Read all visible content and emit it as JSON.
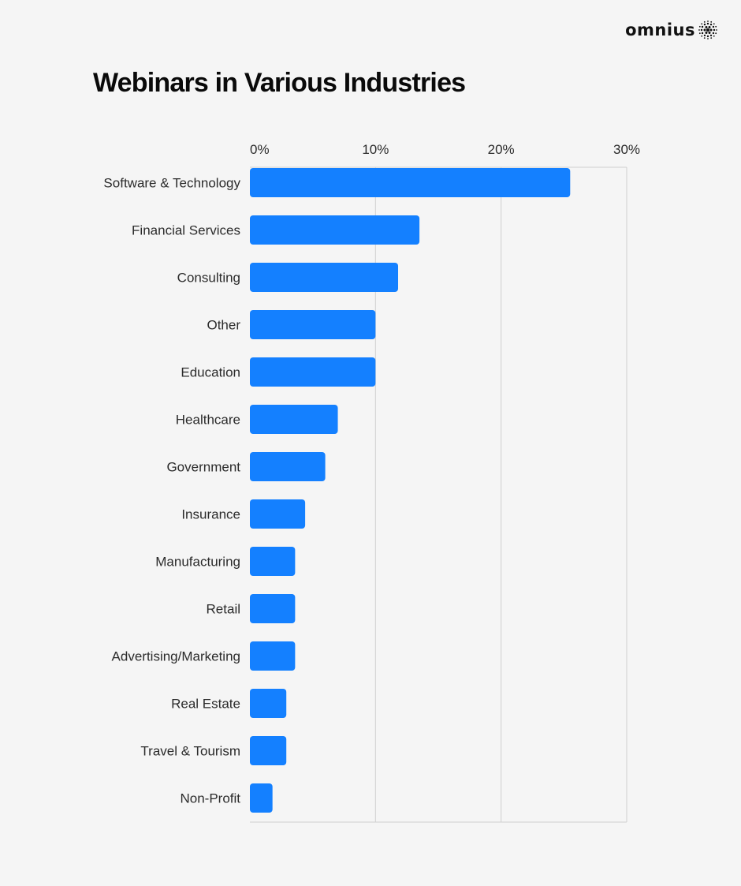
{
  "brand": {
    "name": "omnius",
    "logo_icon": "dotted-sphere-icon"
  },
  "chart_data": {
    "type": "bar",
    "orientation": "horizontal",
    "title": "Webinars in Various Industries",
    "xlabel": "",
    "ylabel": "",
    "xlim": [
      0,
      30
    ],
    "ticks": [
      0,
      10,
      20,
      30
    ],
    "tick_labels": [
      "0%",
      "10%",
      "20%",
      "30%"
    ],
    "grid": true,
    "categories": [
      "Software & Technology",
      "Financial Services",
      "Consulting",
      "Other",
      "Education",
      "Healthcare",
      "Government",
      "Insurance",
      "Manufacturing",
      "Retail",
      "Advertising/Marketing",
      "Real Estate",
      "Travel & Tourism",
      "Non-Profit"
    ],
    "values": [
      25.5,
      13.5,
      11.8,
      10,
      10,
      7,
      6,
      4.4,
      3.6,
      3.6,
      3.6,
      2.9,
      2.9,
      1.8
    ],
    "colors": {
      "bar": "#1480ff",
      "grid": "#cfcfcf",
      "text": "#2b2b2b"
    }
  }
}
